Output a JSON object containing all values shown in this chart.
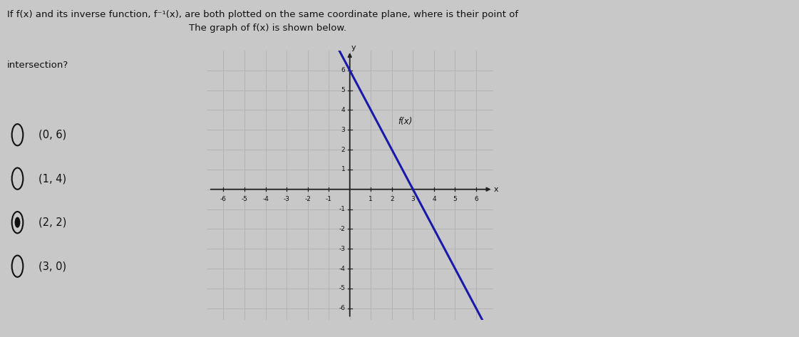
{
  "question_text_line1": "If f(x) and its inverse function, f⁻¹(x), are both plotted on the same coordinate plane, where is their point of",
  "question_text_line2": "intersection?",
  "options": [
    "(0, 6)",
    "(1, 4)",
    "(2, 2)",
    "(3, 0)"
  ],
  "selected_option": 2,
  "graph_title": "The graph of f(x) is shown below.",
  "fx_label": "f(x)",
  "line_color": "#1a1aaa",
  "slope": -2,
  "intercept": 6,
  "x_range": [
    -6,
    6
  ],
  "y_range": [
    -6,
    6
  ],
  "x_ticks": [
    -6,
    -5,
    -4,
    -3,
    -2,
    -1,
    1,
    2,
    3,
    4,
    5,
    6
  ],
  "y_ticks": [
    -6,
    -5,
    -4,
    -3,
    -2,
    -1,
    1,
    2,
    3,
    4,
    5,
    6
  ],
  "bg_color": "#c8c8c8",
  "panel_color": "#dcdcdc",
  "right_bg_color": "#b8b8b8",
  "grid_color": "#b0b0b0",
  "axis_color": "#222222",
  "text_color": "#111111",
  "question_fontsize": 9.5,
  "option_fontsize": 10.5,
  "graph_title_fontsize": 9.5,
  "label_fontsize": 8.5,
  "tick_fontsize": 6.5
}
